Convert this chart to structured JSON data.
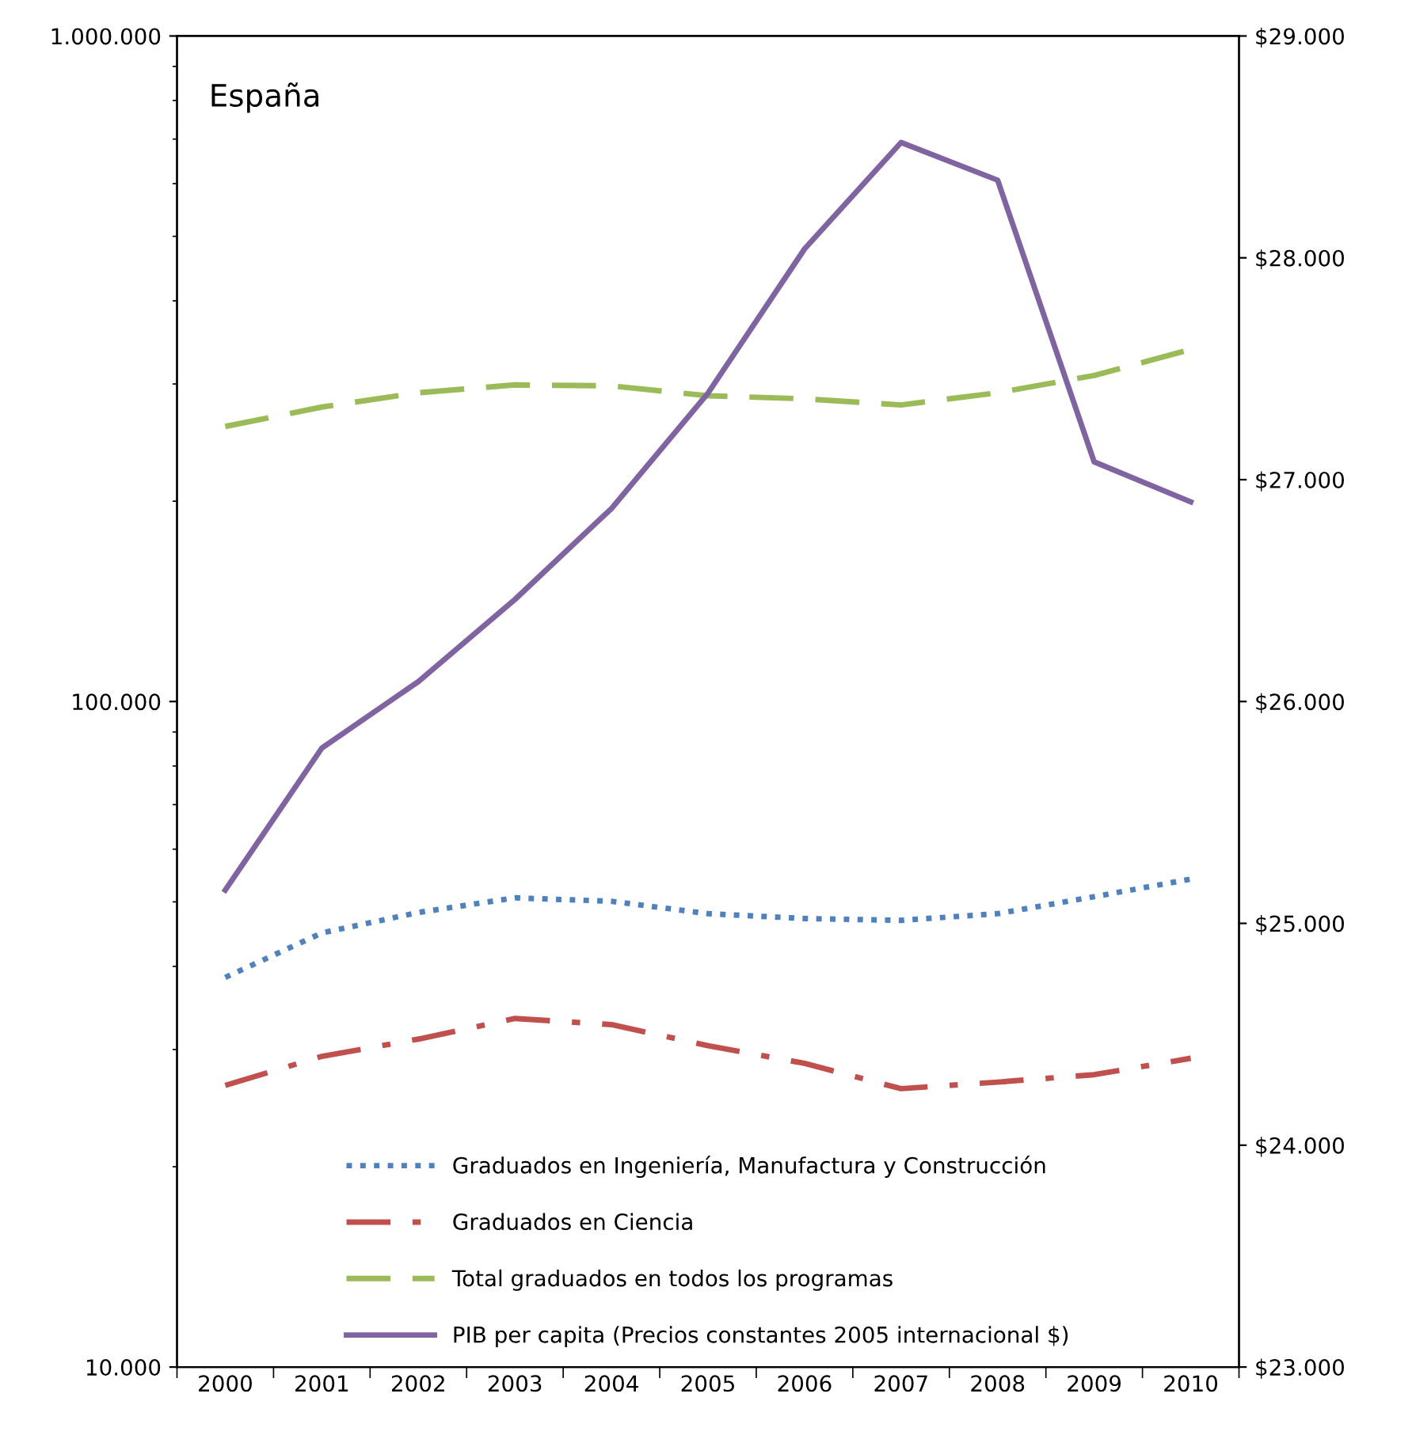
{
  "chart_data": {
    "type": "line",
    "title": "España",
    "categories": [
      "2000",
      "2001",
      "2002",
      "2003",
      "2004",
      "2005",
      "2006",
      "2007",
      "2008",
      "2009",
      "2010"
    ],
    "series": [
      {
        "name": "Graduados en Ingeniería, Manufactura y Construcción",
        "color": "#4f81bd",
        "line_style": "dotted",
        "values": [
          38500,
          44900,
          48200,
          50700,
          50100,
          48000,
          47200,
          46900,
          48000,
          50900,
          54100
        ]
      },
      {
        "name": "Graduados en Ciencia",
        "color": "#c0504d",
        "line_style": "dashdot",
        "values": [
          26500,
          29300,
          31100,
          33400,
          32700,
          30400,
          28600,
          26200,
          26800,
          27500,
          29100
        ]
      },
      {
        "name": "Total graduados en todos los programas",
        "color": "#9bbb59",
        "line_style": "dashed",
        "values": [
          259000,
          277000,
          291000,
          299000,
          298000,
          288000,
          285000,
          279000,
          291000,
          309000,
          338000
        ]
      },
      {
        "name": "PIB per capita (Precios constantes 2005 internacional $)",
        "color": "#8064a2",
        "line_style": "solid",
        "axis": "y2",
        "values": [
          25150,
          25790,
          26090,
          26460,
          26870,
          27390,
          28040,
          28520,
          28350,
          27080,
          26900
        ]
      }
    ],
    "log": "y",
    "ylim": [
      10000,
      1000000
    ],
    "yticks": [
      {
        "value": 10000,
        "label": "10.000"
      },
      {
        "value": 100000,
        "label": "100.000"
      },
      {
        "value": 1000000,
        "label": "1.000.000"
      }
    ],
    "y2lim": [
      23000,
      29000
    ],
    "y2ticks": [
      {
        "value": 23000,
        "label": "$23.000"
      },
      {
        "value": 24000,
        "label": "$24.000"
      },
      {
        "value": 25000,
        "label": "$25.000"
      },
      {
        "value": 26000,
        "label": "$26.000"
      },
      {
        "value": 27000,
        "label": "$27.000"
      },
      {
        "value": 28000,
        "label": "$28.000"
      },
      {
        "value": 29000,
        "label": "$29.000"
      }
    ],
    "grid": false,
    "legend": "bottom",
    "marker": "none"
  }
}
